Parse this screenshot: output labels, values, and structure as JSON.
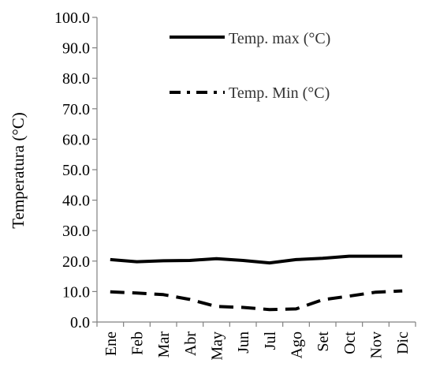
{
  "chart_data": {
    "type": "line",
    "categories": [
      "Ene",
      "Feb",
      "Mar",
      "Abr",
      "May",
      "Jun",
      "Jul",
      "Ago",
      "Set",
      "Oct",
      "Nov",
      "Dic"
    ],
    "ylabel": "Temperatura (°C)",
    "xlabel": "",
    "ylim": [
      0,
      100
    ],
    "y_ticks": [
      "0.0",
      "10.0",
      "20.0",
      "30.0",
      "40.0",
      "50.0",
      "60.0",
      "70.0",
      "80.0",
      "90.0",
      "100.0"
    ],
    "grid": false,
    "legend_position": "top-right",
    "series": [
      {
        "name": "Temp. max (°C)",
        "style": "solid",
        "color": "#000000",
        "values": [
          20.5,
          19.8,
          20.1,
          20.2,
          20.8,
          20.2,
          19.4,
          20.5,
          20.9,
          21.6,
          21.6,
          21.6
        ]
      },
      {
        "name": "Temp. Min (°C)",
        "style": "dashed",
        "color": "#000000",
        "values": [
          9.9,
          9.5,
          9.0,
          7.4,
          5.1,
          4.8,
          4.1,
          4.3,
          7.3,
          8.5,
          9.8,
          10.2
        ]
      }
    ]
  }
}
